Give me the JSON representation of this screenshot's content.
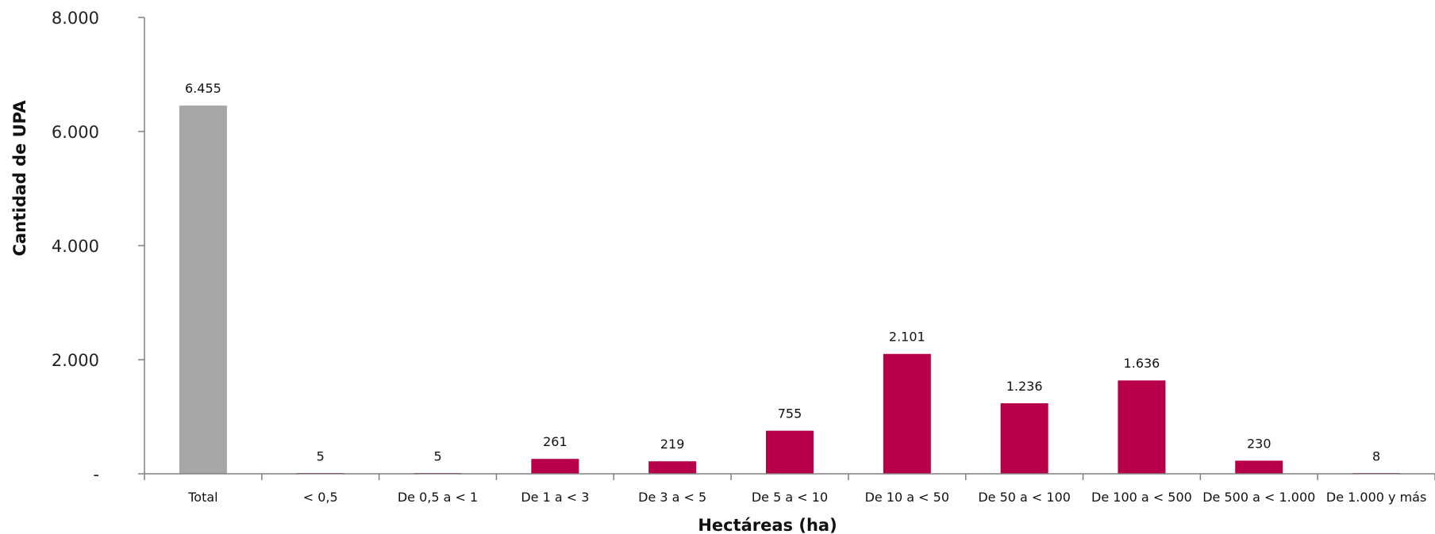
{
  "chart_data": {
    "type": "bar",
    "xlabel": "Hectáreas (ha)",
    "ylabel": "Cantidad de UPA",
    "categories": [
      "Total",
      "< 0,5",
      "De 0,5 a < 1",
      "De 1 a < 3",
      "De 3 a < 5",
      "De 5 a < 10",
      "De 10 a < 50",
      "De 50 a < 100",
      "De 100 a < 500",
      "De 500 a < 1.000",
      "De 1.000 y más"
    ],
    "values": [
      6455,
      5,
      5,
      261,
      219,
      755,
      2101,
      1236,
      1636,
      230,
      8
    ],
    "value_labels": [
      "6.455",
      "5",
      "5",
      "261",
      "219",
      "755",
      "2.101",
      "1.236",
      "1.636",
      "230",
      "8"
    ],
    "ylim": [
      0,
      8000
    ],
    "yticks": [
      0,
      2000,
      4000,
      6000,
      8000
    ],
    "ytick_labels": [
      "-",
      "2.000",
      "4.000",
      "6.000",
      "8.000"
    ],
    "colors": {
      "total": "#a6a6a6",
      "bars": "#b8004a",
      "axis": "#808080"
    },
    "grid": false,
    "legend": "none"
  }
}
